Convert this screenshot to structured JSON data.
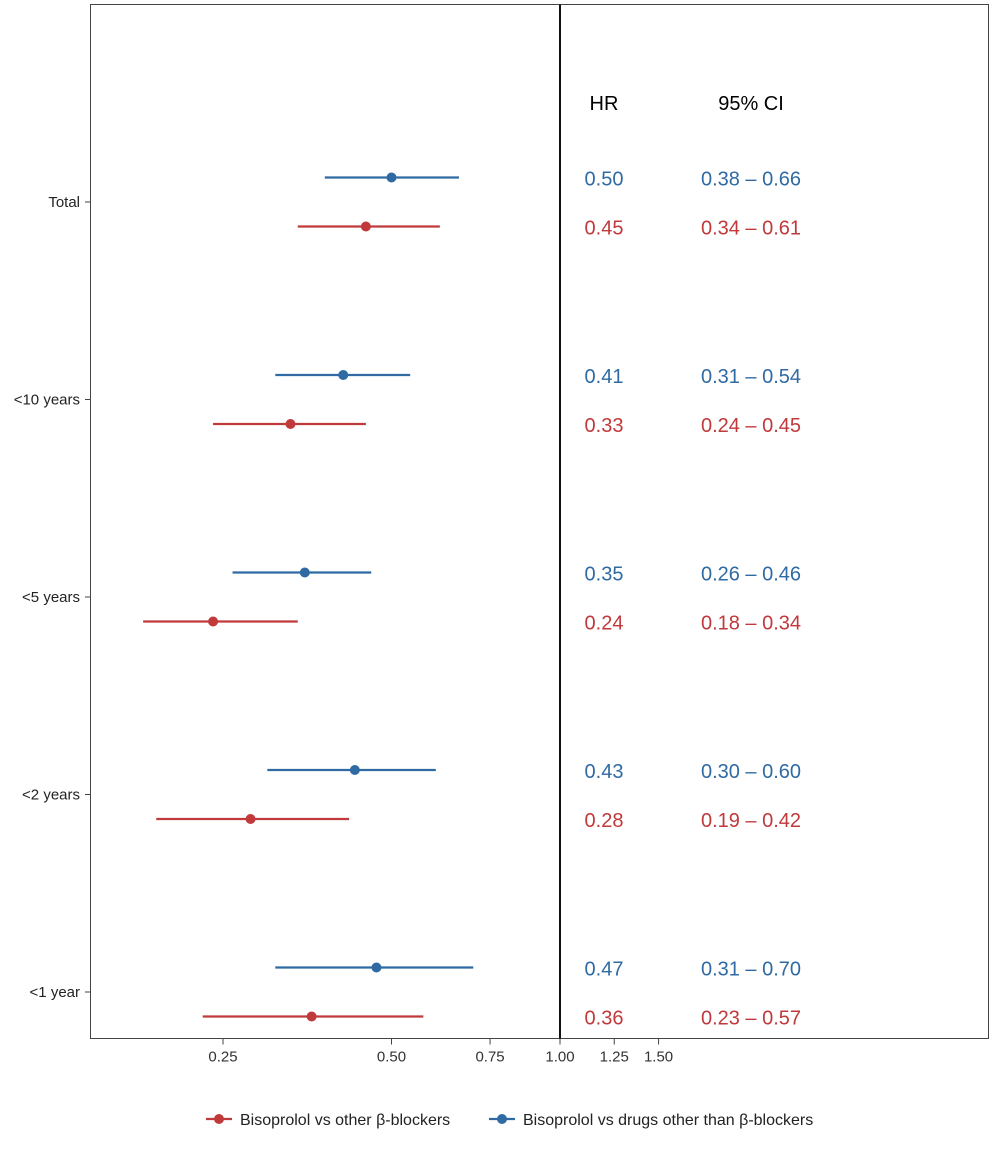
{
  "chart_data": {
    "type": "forest",
    "xscale": "log",
    "xticks": [
      0.25,
      0.5,
      0.75,
      1.0,
      1.25,
      1.5
    ],
    "xtick_labels": [
      "0.25",
      "0.50",
      "0.75",
      "1.00",
      "1.25",
      "1.50"
    ],
    "reference_line": 1.0,
    "col_headers": {
      "hr": "HR",
      "ci": "95% CI"
    },
    "colors": {
      "red": "#c0393b",
      "blue": "#2f6aa3"
    },
    "groups": [
      {
        "label": "Total",
        "blue": {
          "hr": 0.5,
          "lo": 0.38,
          "hi": 0.66,
          "hr_text": "0.50",
          "ci_text": "0.38 – 0.66"
        },
        "red": {
          "hr": 0.45,
          "lo": 0.34,
          "hi": 0.61,
          "hr_text": "0.45",
          "ci_text": "0.34 – 0.61"
        }
      },
      {
        "label": "<10 years",
        "blue": {
          "hr": 0.41,
          "lo": 0.31,
          "hi": 0.54,
          "hr_text": "0.41",
          "ci_text": "0.31 – 0.54"
        },
        "red": {
          "hr": 0.33,
          "lo": 0.24,
          "hi": 0.45,
          "hr_text": "0.33",
          "ci_text": "0.24 – 0.45"
        }
      },
      {
        "label": "<5 years",
        "blue": {
          "hr": 0.35,
          "lo": 0.26,
          "hi": 0.46,
          "hr_text": "0.35",
          "ci_text": "0.26 – 0.46"
        },
        "red": {
          "hr": 0.24,
          "lo": 0.18,
          "hi": 0.34,
          "hr_text": "0.24",
          "ci_text": "0.18 – 0.34"
        }
      },
      {
        "label": "<2 years",
        "blue": {
          "hr": 0.43,
          "lo": 0.3,
          "hi": 0.6,
          "hr_text": "0.43",
          "ci_text": "0.30 – 0.60"
        },
        "red": {
          "hr": 0.28,
          "lo": 0.19,
          "hi": 0.42,
          "hr_text": "0.28",
          "ci_text": "0.19 – 0.42"
        }
      },
      {
        "label": "<1 year",
        "blue": {
          "hr": 0.47,
          "lo": 0.31,
          "hi": 0.7,
          "hr_text": "0.47",
          "ci_text": "0.31 – 0.70"
        },
        "red": {
          "hr": 0.36,
          "lo": 0.23,
          "hi": 0.57,
          "hr_text": "0.36",
          "ci_text": "0.23 – 0.57"
        }
      }
    ],
    "legend": {
      "position": "bottom",
      "items": [
        {
          "key": "red",
          "label": "Bisoprolol vs other β-blockers"
        },
        {
          "key": "blue",
          "label": "Bisoprolol vs drugs other than β-blockers"
        }
      ]
    }
  }
}
